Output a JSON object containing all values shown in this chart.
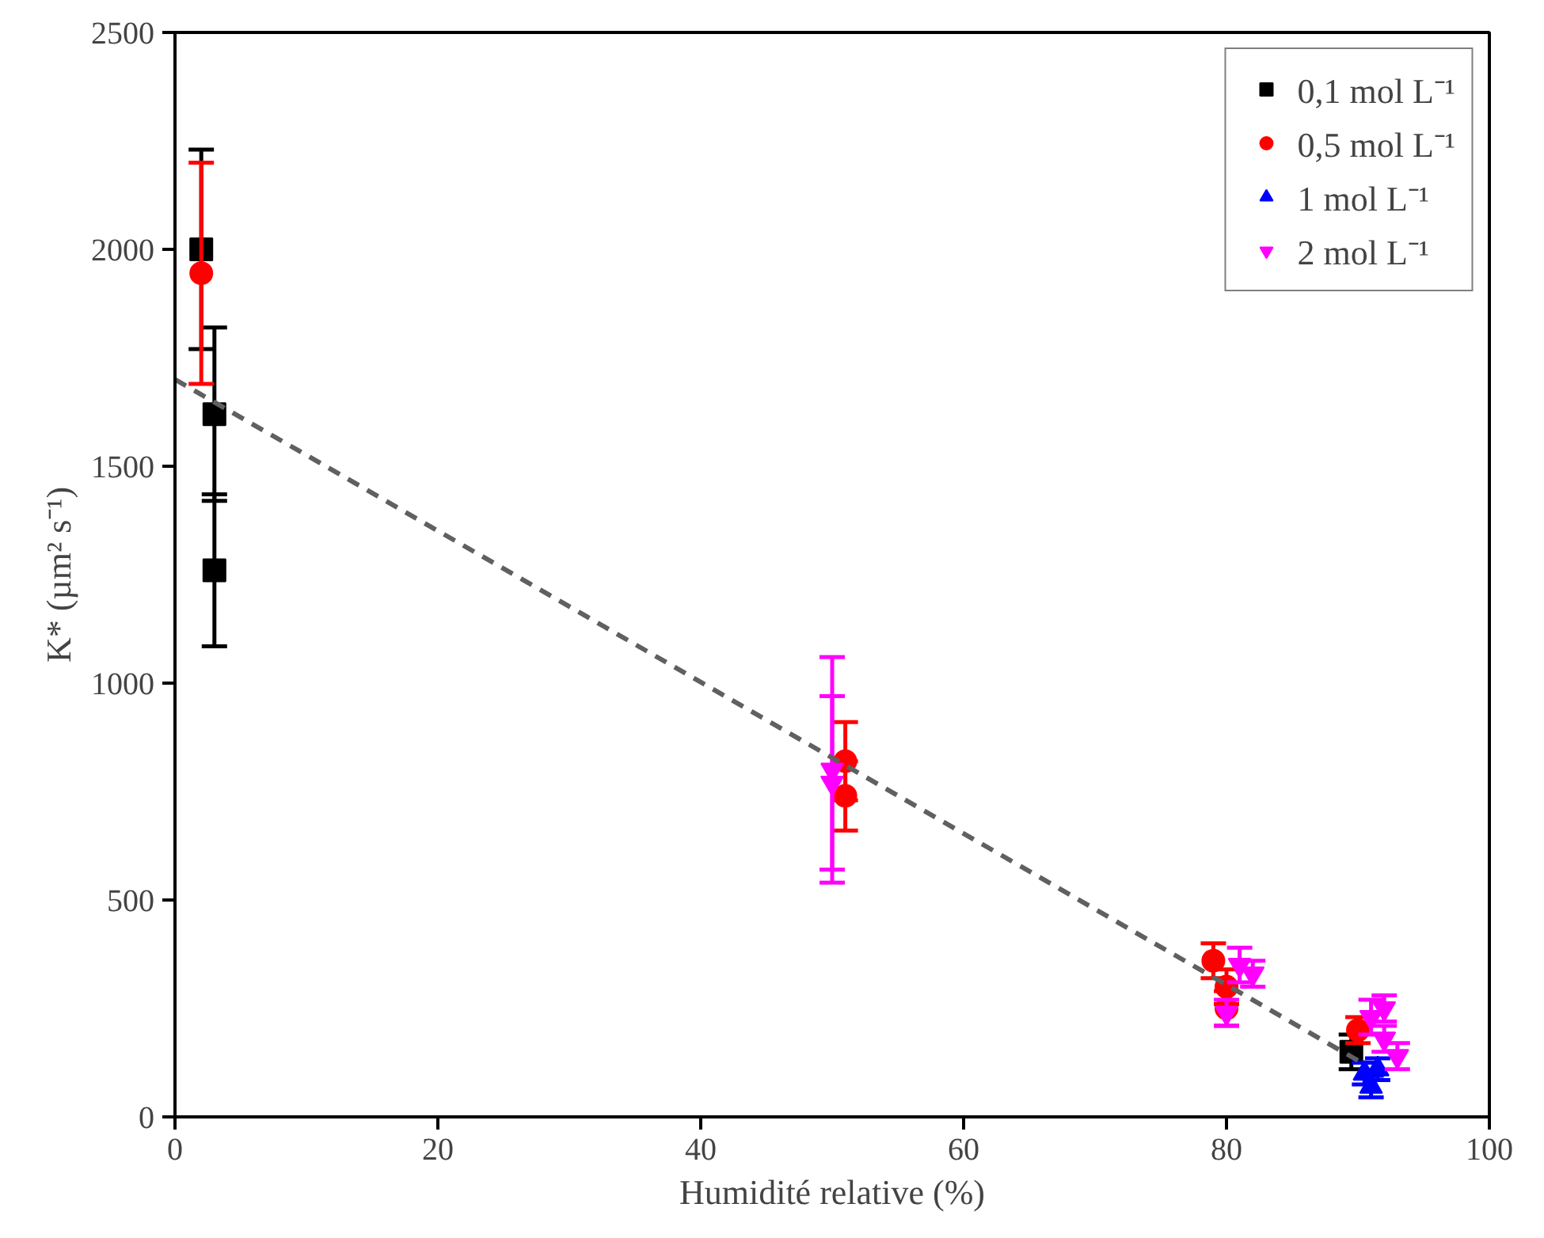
{
  "chart_data": {
    "type": "scatter",
    "xlabel": "Humidité relative (%)",
    "ylabel": "K* (µm² s⁻¹)",
    "xlim": [
      0,
      100
    ],
    "xticks": [
      0,
      20,
      40,
      60,
      80,
      100
    ],
    "ylim": [
      0,
      2500
    ],
    "yticks": [
      0,
      500,
      1000,
      1500,
      2000,
      2500
    ],
    "grid": false,
    "legend": "top right",
    "series": [
      {
        "name": "0,1 mol L⁻¹",
        "color": "#000000",
        "marker": "square",
        "x": [
          2,
          3,
          3,
          89.5
        ],
        "values": [
          2000,
          1620,
          1260,
          150
        ],
        "errors": [
          230,
          200,
          175,
          40
        ]
      },
      {
        "name": "0,5 mol L⁻¹",
        "color": "#ff0000",
        "marker": "circle",
        "x": [
          2,
          51,
          51,
          79,
          80,
          80,
          90
        ],
        "values": [
          1945,
          820,
          740,
          360,
          300,
          250,
          200
        ],
        "errors": [
          255,
          90,
          80,
          40,
          40,
          40,
          30
        ]
      },
      {
        "name": "1 mol L⁻¹",
        "color": "#0000ff",
        "marker": "triangle",
        "x": [
          90.5,
          91,
          91.5
        ],
        "values": [
          100,
          70,
          110
        ],
        "errors": [
          25,
          25,
          25
        ]
      },
      {
        "name": "2 mol L⁻¹",
        "color": "#ff00ff",
        "x": [
          50,
          50,
          80,
          81,
          82,
          91,
          92,
          92,
          93
        ],
        "values": [
          800,
          770,
          240,
          350,
          330,
          230,
          250,
          180,
          140
        ],
        "errors": [
          260,
          200,
          30,
          40,
          30,
          40,
          30,
          30,
          30
        ]
      },
      {
        "type": "line",
        "color": "#606060",
        "line_style": "dashed",
        "x": [
          0,
          90
        ],
        "values": [
          1700,
          130
        ]
      }
    ]
  }
}
